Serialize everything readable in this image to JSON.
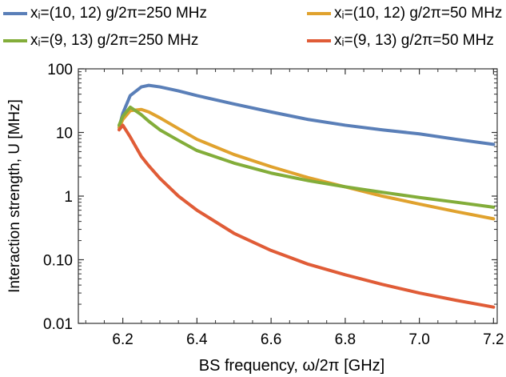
{
  "chart_data": {
    "type": "line",
    "xlabel": "BS frequency, ω/2π [GHz]",
    "ylabel": "Interaction strength, U [MHz]",
    "xlim": [
      6.08,
      7.21
    ],
    "ylim": [
      0.01,
      100
    ],
    "y_scale": "log",
    "grid": false,
    "legend_position": "top",
    "x_ticks": [
      6.2,
      6.4,
      6.6,
      6.8,
      7.0,
      7.2
    ],
    "x_tick_labels": [
      "6.2",
      "6.4",
      "6.6",
      "6.8",
      "7.0",
      "7.2"
    ],
    "y_ticks": [
      0.01,
      0.1,
      1,
      10,
      100
    ],
    "y_tick_labels": [
      "0.01",
      "0.10",
      "1",
      "10",
      "100"
    ],
    "x": [
      6.19,
      6.2,
      6.22,
      6.25,
      6.27,
      6.3,
      6.35,
      6.4,
      6.5,
      6.6,
      6.7,
      6.8,
      6.9,
      7.0,
      7.1,
      7.2
    ],
    "series": [
      {
        "name": "xᵢ=(10, 12)  g/2π=250 MHz",
        "color": "#5a7fb8",
        "values": [
          12,
          20,
          38,
          52,
          55,
          52,
          45,
          38,
          28,
          21,
          16,
          13,
          11,
          9.5,
          7.8,
          6.5
        ]
      },
      {
        "name": "xᵢ=(10, 12)  g/2π=50 MHz",
        "color": "#e0a22e",
        "values": [
          12,
          16,
          22,
          23,
          21,
          17,
          11.5,
          7.8,
          4.5,
          2.9,
          1.95,
          1.4,
          1.0,
          0.75,
          0.57,
          0.44
        ]
      },
      {
        "name": "xᵢ=(9, 13)  g/2π=250 MHz",
        "color": "#83ad3a",
        "values": [
          13,
          18,
          25,
          19,
          15,
          11,
          7.5,
          5.2,
          3.3,
          2.3,
          1.75,
          1.4,
          1.15,
          0.95,
          0.8,
          0.67
        ]
      },
      {
        "name": "xᵢ=(9, 13)  g/2π=50 MHz",
        "color": "#e05c37",
        "values": [
          11,
          13,
          8.5,
          4.2,
          3.0,
          1.9,
          1.0,
          0.6,
          0.26,
          0.14,
          0.085,
          0.058,
          0.041,
          0.03,
          0.023,
          0.018
        ]
      }
    ]
  }
}
